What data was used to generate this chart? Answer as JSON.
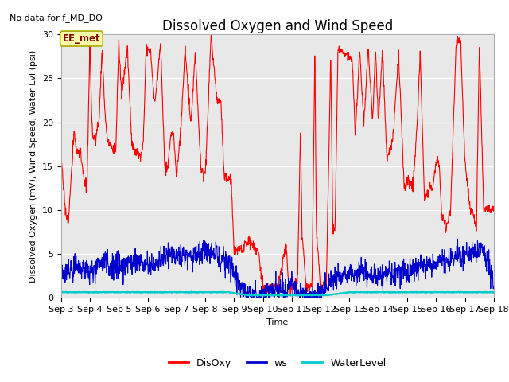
{
  "title": "Dissolved Oxygen and Wind Speed",
  "top_left_text": "No data for f_MD_DO",
  "annotation_text": "EE_met",
  "xlabel": "Time",
  "ylabel": "Dissolved Oxygen (mV), Wind Speed, Water Lvl (psi)",
  "xlim_days": [
    3,
    18
  ],
  "ylim": [
    0,
    30
  ],
  "yticks": [
    0,
    5,
    10,
    15,
    20,
    25,
    30
  ],
  "x_tick_labels": [
    "Sep 3",
    "Sep 4",
    "Sep 5",
    "Sep 6",
    "Sep 7",
    "Sep 8",
    "Sep 9",
    "Sep 10",
    "Sep 11",
    "Sep 12",
    "Sep 13",
    "Sep 14",
    "Sep 15",
    "Sep 16",
    "Sep 17",
    "Sep 18"
  ],
  "background_color": "#e8e8e8",
  "fig_background": "#ffffff",
  "grid_color": "#ffffff",
  "disoxy_color": "#ff0000",
  "ws_color": "#0000cc",
  "wl_color": "#00cccc",
  "legend_labels": [
    "DisOxy",
    "ws",
    "WaterLevel"
  ],
  "legend_colors": [
    "#ff0000",
    "#0000cc",
    "#00cccc"
  ],
  "title_fontsize": 12,
  "label_fontsize": 8,
  "tick_fontsize": 8
}
